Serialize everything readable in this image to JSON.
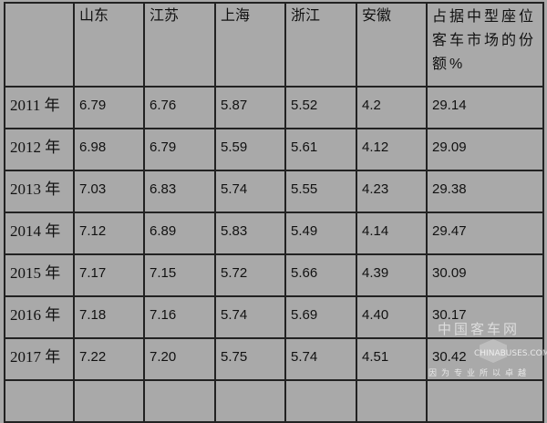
{
  "table": {
    "headers": [
      "",
      "山东",
      "江苏",
      "上海",
      "浙江",
      "安徽",
      "占据中型座位客车市场的份额%"
    ],
    "rows": [
      {
        "year": "2011 年",
        "values": [
          "6.79",
          "6.76",
          "5.87",
          "5.52",
          "4.2",
          "29.14"
        ]
      },
      {
        "year": "2012 年",
        "values": [
          "6.98",
          "6.79",
          "5.59",
          "5.61",
          "4.12",
          "29.09"
        ]
      },
      {
        "year": "2013 年",
        "values": [
          "7.03",
          "6.83",
          "5.74",
          "5.55",
          "4.23",
          "29.38"
        ]
      },
      {
        "year": "2014 年",
        "values": [
          "7.12",
          "6.89",
          "5.83",
          "5.49",
          "4.14",
          "29.47"
        ]
      },
      {
        "year": "2015 年",
        "values": [
          "7.17",
          "7.15",
          "5.72",
          "5.66",
          "4.39",
          "30.09"
        ]
      },
      {
        "year": "2016 年",
        "values": [
          "7.18",
          "7.16",
          "5.74",
          "5.69",
          "4.40",
          "30.17"
        ]
      },
      {
        "year": "2017 年",
        "values": [
          "7.22",
          "7.20",
          "5.75",
          "5.74",
          "4.51",
          "30.42"
        ]
      }
    ]
  },
  "watermark": {
    "cn": "中国客车网",
    "en": "CHINABUSES.COM",
    "slogan": "因为专业所以卓越"
  }
}
